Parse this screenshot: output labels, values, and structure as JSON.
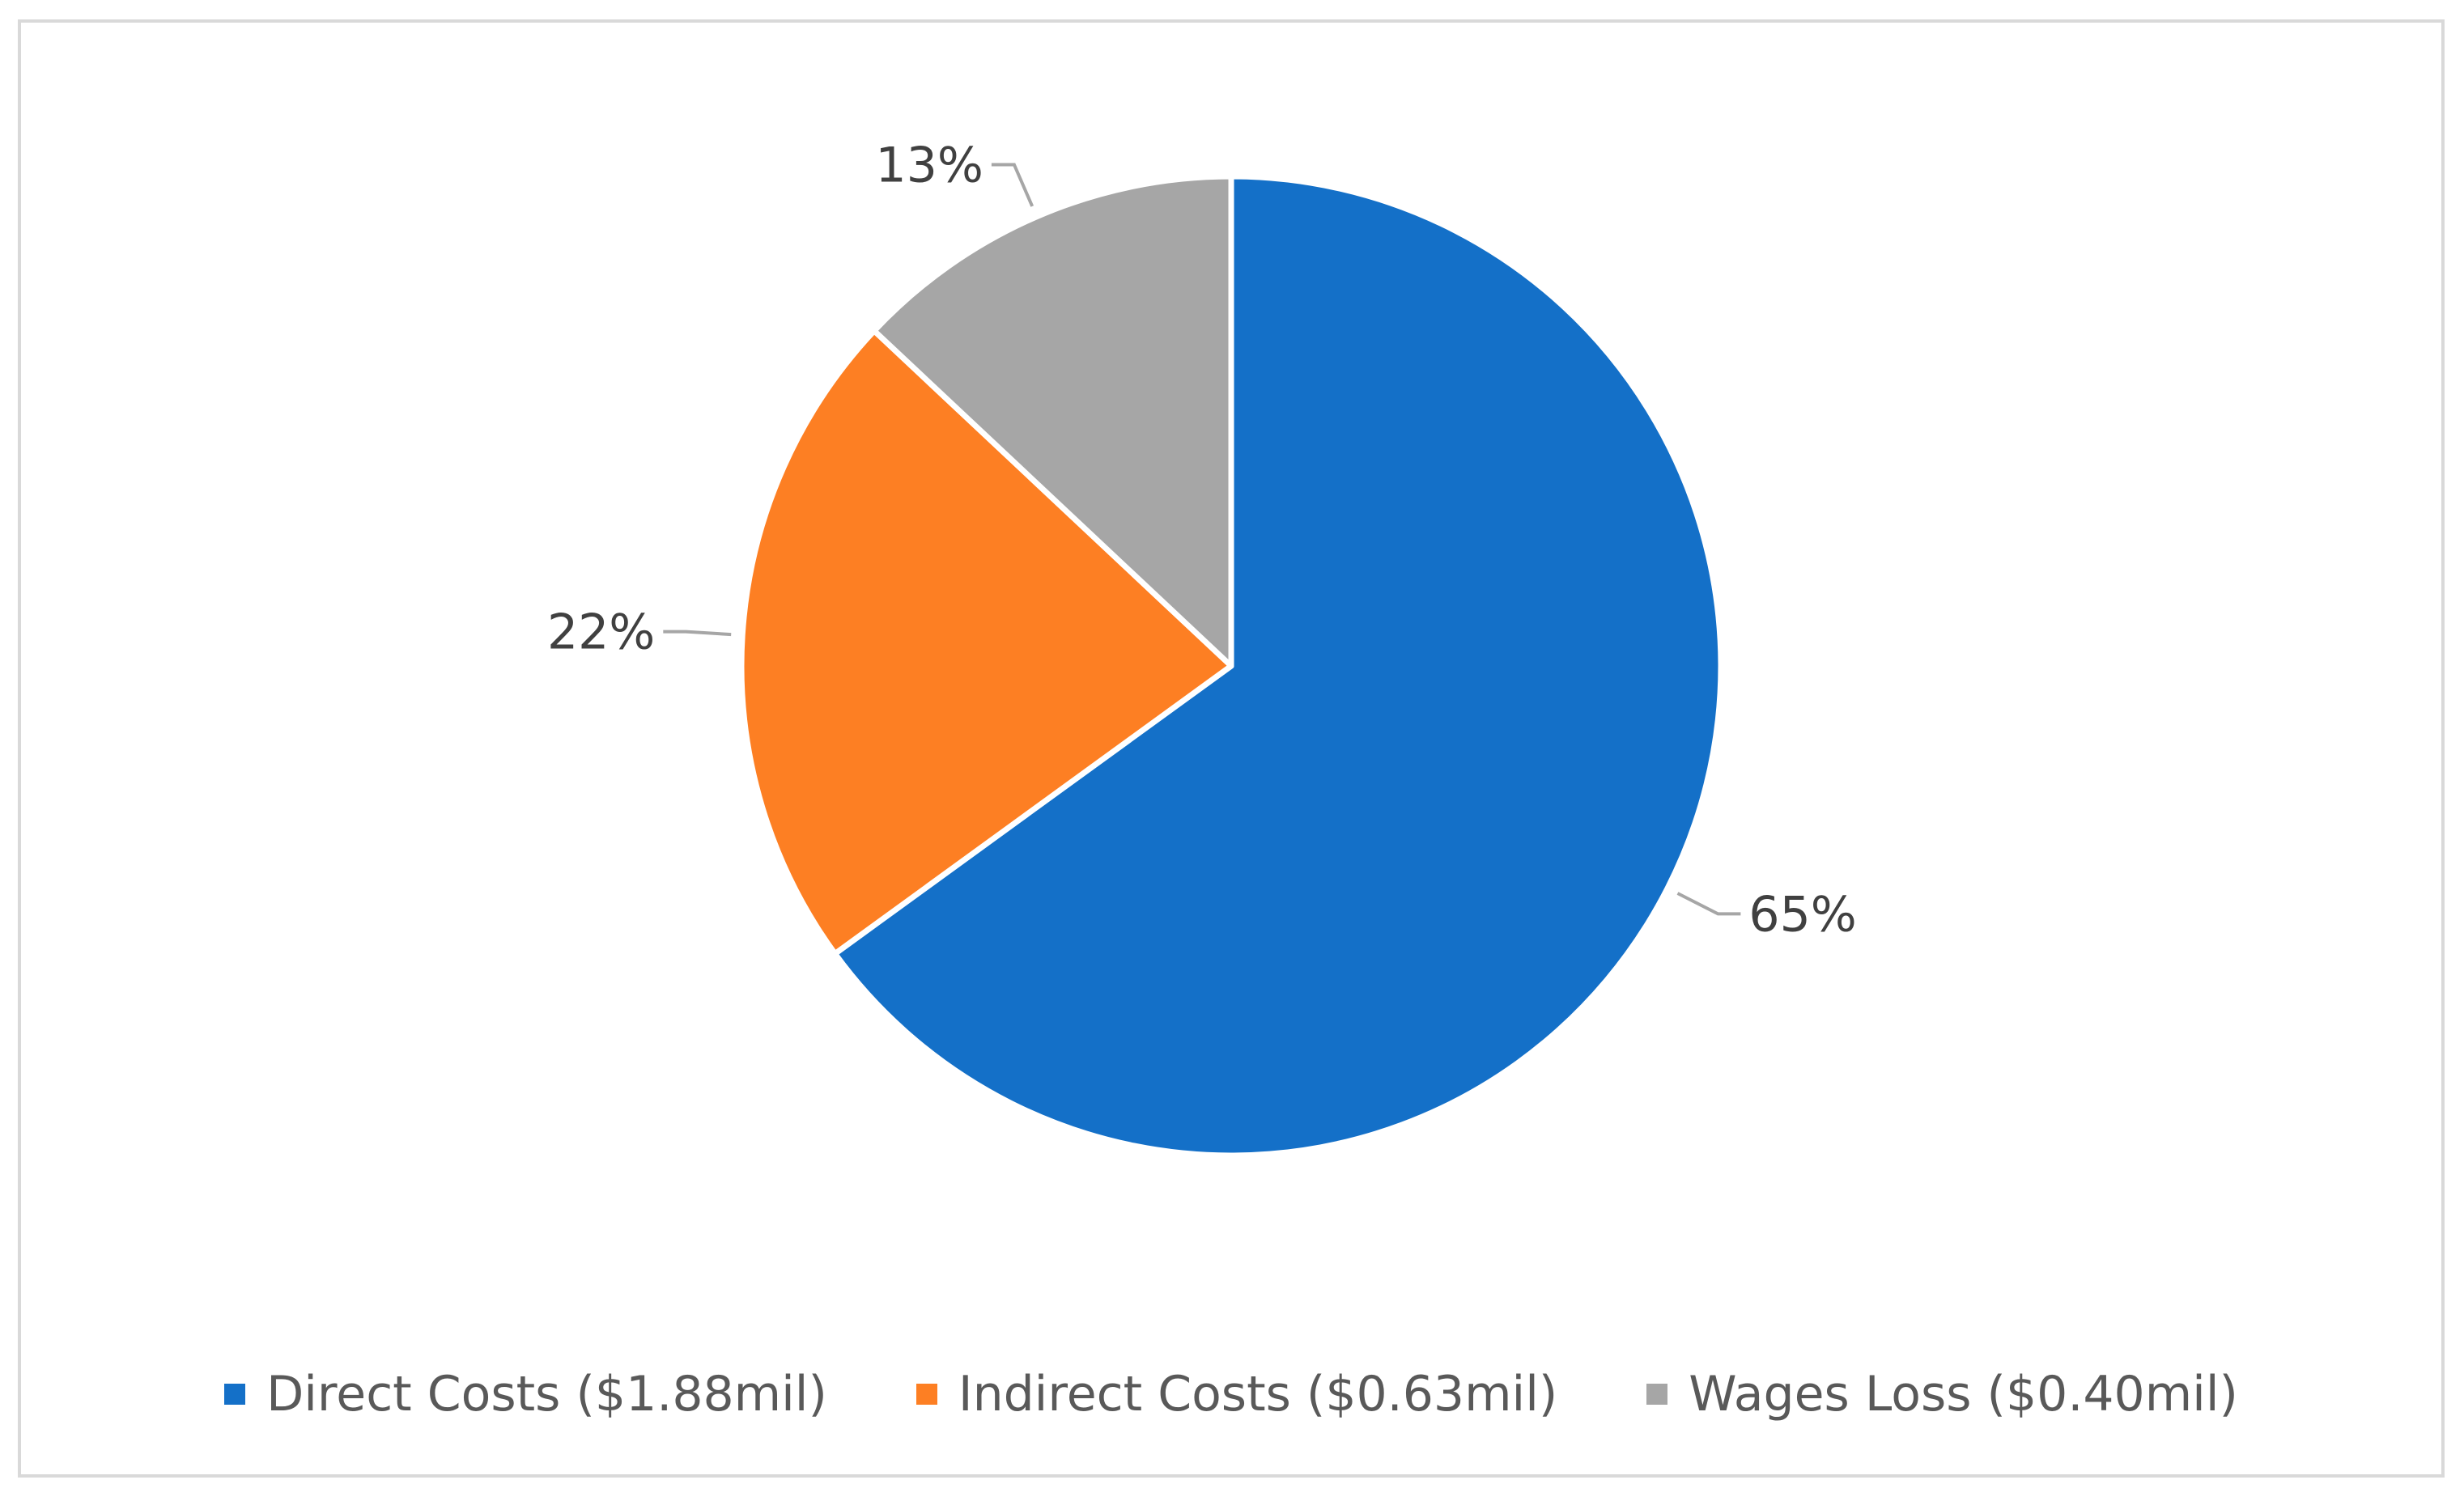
{
  "chart_data": {
    "type": "pie",
    "title": "",
    "slices": [
      {
        "label": "Direct Costs ($1.88mil)",
        "value": 65,
        "data_label": "65%",
        "color": "#1470c8"
      },
      {
        "label": "Indirect Costs ($0.63mil)",
        "value": 22,
        "data_label": "22%",
        "color": "#fd7f23"
      },
      {
        "label": "Wages Loss ($0.40mil)",
        "value": 13,
        "data_label": "13%",
        "color": "#a6a6a6"
      }
    ],
    "start_angle_deg": 0,
    "direction": "clockwise",
    "legend_position": "bottom",
    "data_labels": "outside-end with leader lines"
  }
}
